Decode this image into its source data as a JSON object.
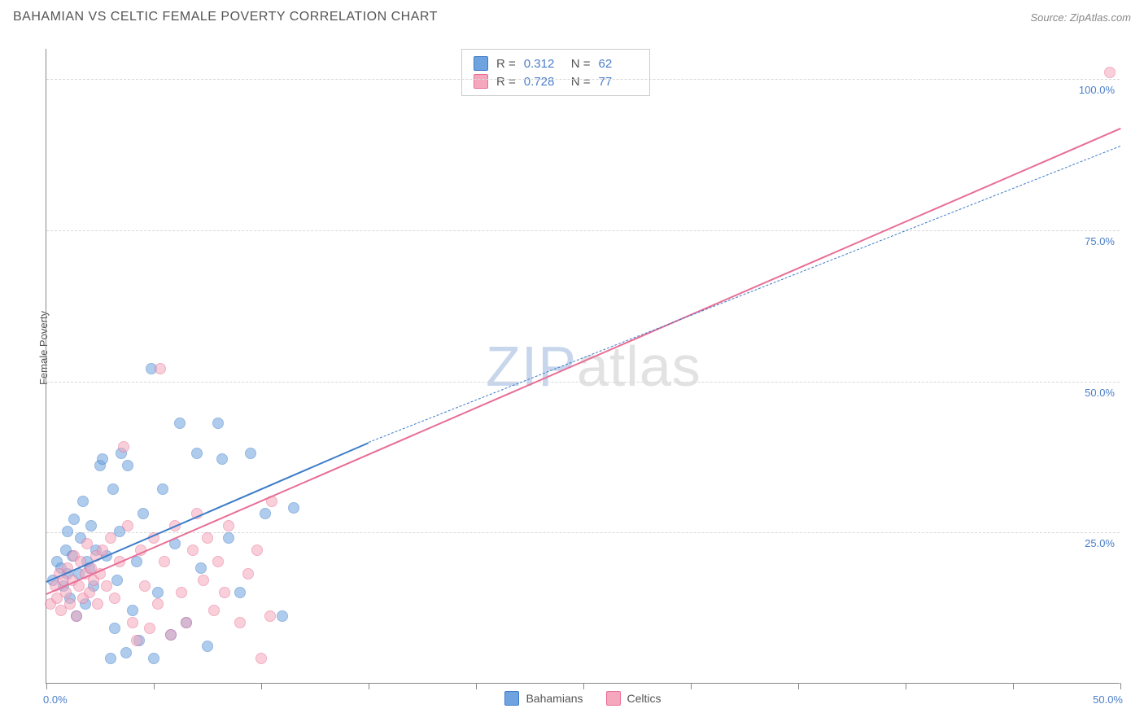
{
  "title": "BAHAMIAN VS CELTIC FEMALE POVERTY CORRELATION CHART",
  "source": "Source: ZipAtlas.com",
  "y_axis_label": "Female Poverty",
  "watermark": {
    "part1": "ZIP",
    "part2": "atlas"
  },
  "chart": {
    "type": "scatter",
    "xlim": [
      0,
      50
    ],
    "ylim": [
      0,
      105
    ],
    "x_tick_labels": {
      "min": "0.0%",
      "max": "50.0%"
    },
    "x_tick_positions": [
      0,
      5,
      10,
      15,
      20,
      25,
      30,
      35,
      40,
      45,
      50
    ],
    "y_gridlines": [
      25,
      50,
      75,
      100
    ],
    "y_tick_labels": [
      "25.0%",
      "50.0%",
      "75.0%",
      "100.0%"
    ],
    "background_color": "#ffffff",
    "grid_color": "#d8d8d8",
    "axis_color": "#888888",
    "tick_label_color": "#4a7ec8",
    "point_radius": 7,
    "point_opacity": 0.55,
    "series": [
      {
        "name": "Bahamians",
        "fill": "#6fa3e0",
        "stroke": "#3d7cc9",
        "R": "0.312",
        "N": "62",
        "trend": {
          "solid": {
            "x1": 0,
            "y1": 17,
            "x2": 15,
            "y2": 40,
            "width": 2.4
          },
          "dashed": {
            "x1": 15,
            "y1": 40,
            "x2": 50,
            "y2": 89,
            "width": 1.4,
            "dash": "6,5"
          }
        },
        "points": [
          [
            0.3,
            17
          ],
          [
            0.5,
            20
          ],
          [
            0.7,
            19
          ],
          [
            0.8,
            16
          ],
          [
            0.9,
            22
          ],
          [
            1.0,
            18
          ],
          [
            1.0,
            25
          ],
          [
            1.1,
            14
          ],
          [
            1.2,
            21
          ],
          [
            1.3,
            27
          ],
          [
            1.4,
            11
          ],
          [
            1.5,
            18
          ],
          [
            1.6,
            24
          ],
          [
            1.7,
            30
          ],
          [
            1.8,
            13
          ],
          [
            1.9,
            20
          ],
          [
            2.0,
            19
          ],
          [
            2.1,
            26
          ],
          [
            2.2,
            16
          ],
          [
            2.3,
            22
          ],
          [
            2.5,
            36
          ],
          [
            2.6,
            37
          ],
          [
            2.8,
            21
          ],
          [
            3.0,
            4
          ],
          [
            3.1,
            32
          ],
          [
            3.2,
            9
          ],
          [
            3.3,
            17
          ],
          [
            3.4,
            25
          ],
          [
            3.5,
            38
          ],
          [
            3.7,
            5
          ],
          [
            3.8,
            36
          ],
          [
            4.0,
            12
          ],
          [
            4.2,
            20
          ],
          [
            4.3,
            7
          ],
          [
            4.5,
            28
          ],
          [
            4.9,
            52
          ],
          [
            5.0,
            4
          ],
          [
            5.2,
            15
          ],
          [
            5.4,
            32
          ],
          [
            5.8,
            8
          ],
          [
            6.0,
            23
          ],
          [
            6.2,
            43
          ],
          [
            6.5,
            10
          ],
          [
            7.0,
            38
          ],
          [
            7.2,
            19
          ],
          [
            7.5,
            6
          ],
          [
            8.0,
            43
          ],
          [
            8.2,
            37
          ],
          [
            8.5,
            24
          ],
          [
            9.0,
            15
          ],
          [
            9.5,
            38
          ],
          [
            10.2,
            28
          ],
          [
            11.0,
            11
          ],
          [
            11.5,
            29
          ]
        ]
      },
      {
        "name": "Celtics",
        "fill": "#f5a8bd",
        "stroke": "#e86e95",
        "R": "0.728",
        "N": "77",
        "trend": {
          "solid": {
            "x1": 0,
            "y1": 15,
            "x2": 50,
            "y2": 92,
            "width": 2.4
          }
        },
        "points": [
          [
            0.2,
            13
          ],
          [
            0.4,
            16
          ],
          [
            0.5,
            14
          ],
          [
            0.6,
            18
          ],
          [
            0.7,
            12
          ],
          [
            0.8,
            17
          ],
          [
            0.9,
            15
          ],
          [
            1.0,
            19
          ],
          [
            1.1,
            13
          ],
          [
            1.2,
            17
          ],
          [
            1.3,
            21
          ],
          [
            1.4,
            11
          ],
          [
            1.5,
            16
          ],
          [
            1.6,
            20
          ],
          [
            1.7,
            14
          ],
          [
            1.8,
            18
          ],
          [
            1.9,
            23
          ],
          [
            2.0,
            15
          ],
          [
            2.1,
            19
          ],
          [
            2.2,
            17
          ],
          [
            2.3,
            21
          ],
          [
            2.4,
            13
          ],
          [
            2.5,
            18
          ],
          [
            2.6,
            22
          ],
          [
            2.8,
            16
          ],
          [
            3.0,
            24
          ],
          [
            3.2,
            14
          ],
          [
            3.4,
            20
          ],
          [
            3.6,
            39
          ],
          [
            3.8,
            26
          ],
          [
            4.0,
            10
          ],
          [
            4.2,
            7
          ],
          [
            4.4,
            22
          ],
          [
            4.6,
            16
          ],
          [
            4.8,
            9
          ],
          [
            5.0,
            24
          ],
          [
            5.2,
            13
          ],
          [
            5.3,
            52
          ],
          [
            5.5,
            20
          ],
          [
            5.8,
            8
          ],
          [
            6.0,
            26
          ],
          [
            6.3,
            15
          ],
          [
            6.5,
            10
          ],
          [
            6.8,
            22
          ],
          [
            7.0,
            28
          ],
          [
            7.3,
            17
          ],
          [
            7.5,
            24
          ],
          [
            7.8,
            12
          ],
          [
            8.0,
            20
          ],
          [
            8.3,
            15
          ],
          [
            8.5,
            26
          ],
          [
            9.0,
            10
          ],
          [
            9.4,
            18
          ],
          [
            9.8,
            22
          ],
          [
            10.0,
            4
          ],
          [
            10.4,
            11
          ],
          [
            10.5,
            30
          ],
          [
            49.5,
            101
          ]
        ]
      }
    ]
  },
  "stats_box_labels": {
    "r": "R  =",
    "n": "N  ="
  },
  "legend_labels": {
    "bahamians": "Bahamians",
    "celtics": "Celtics"
  }
}
